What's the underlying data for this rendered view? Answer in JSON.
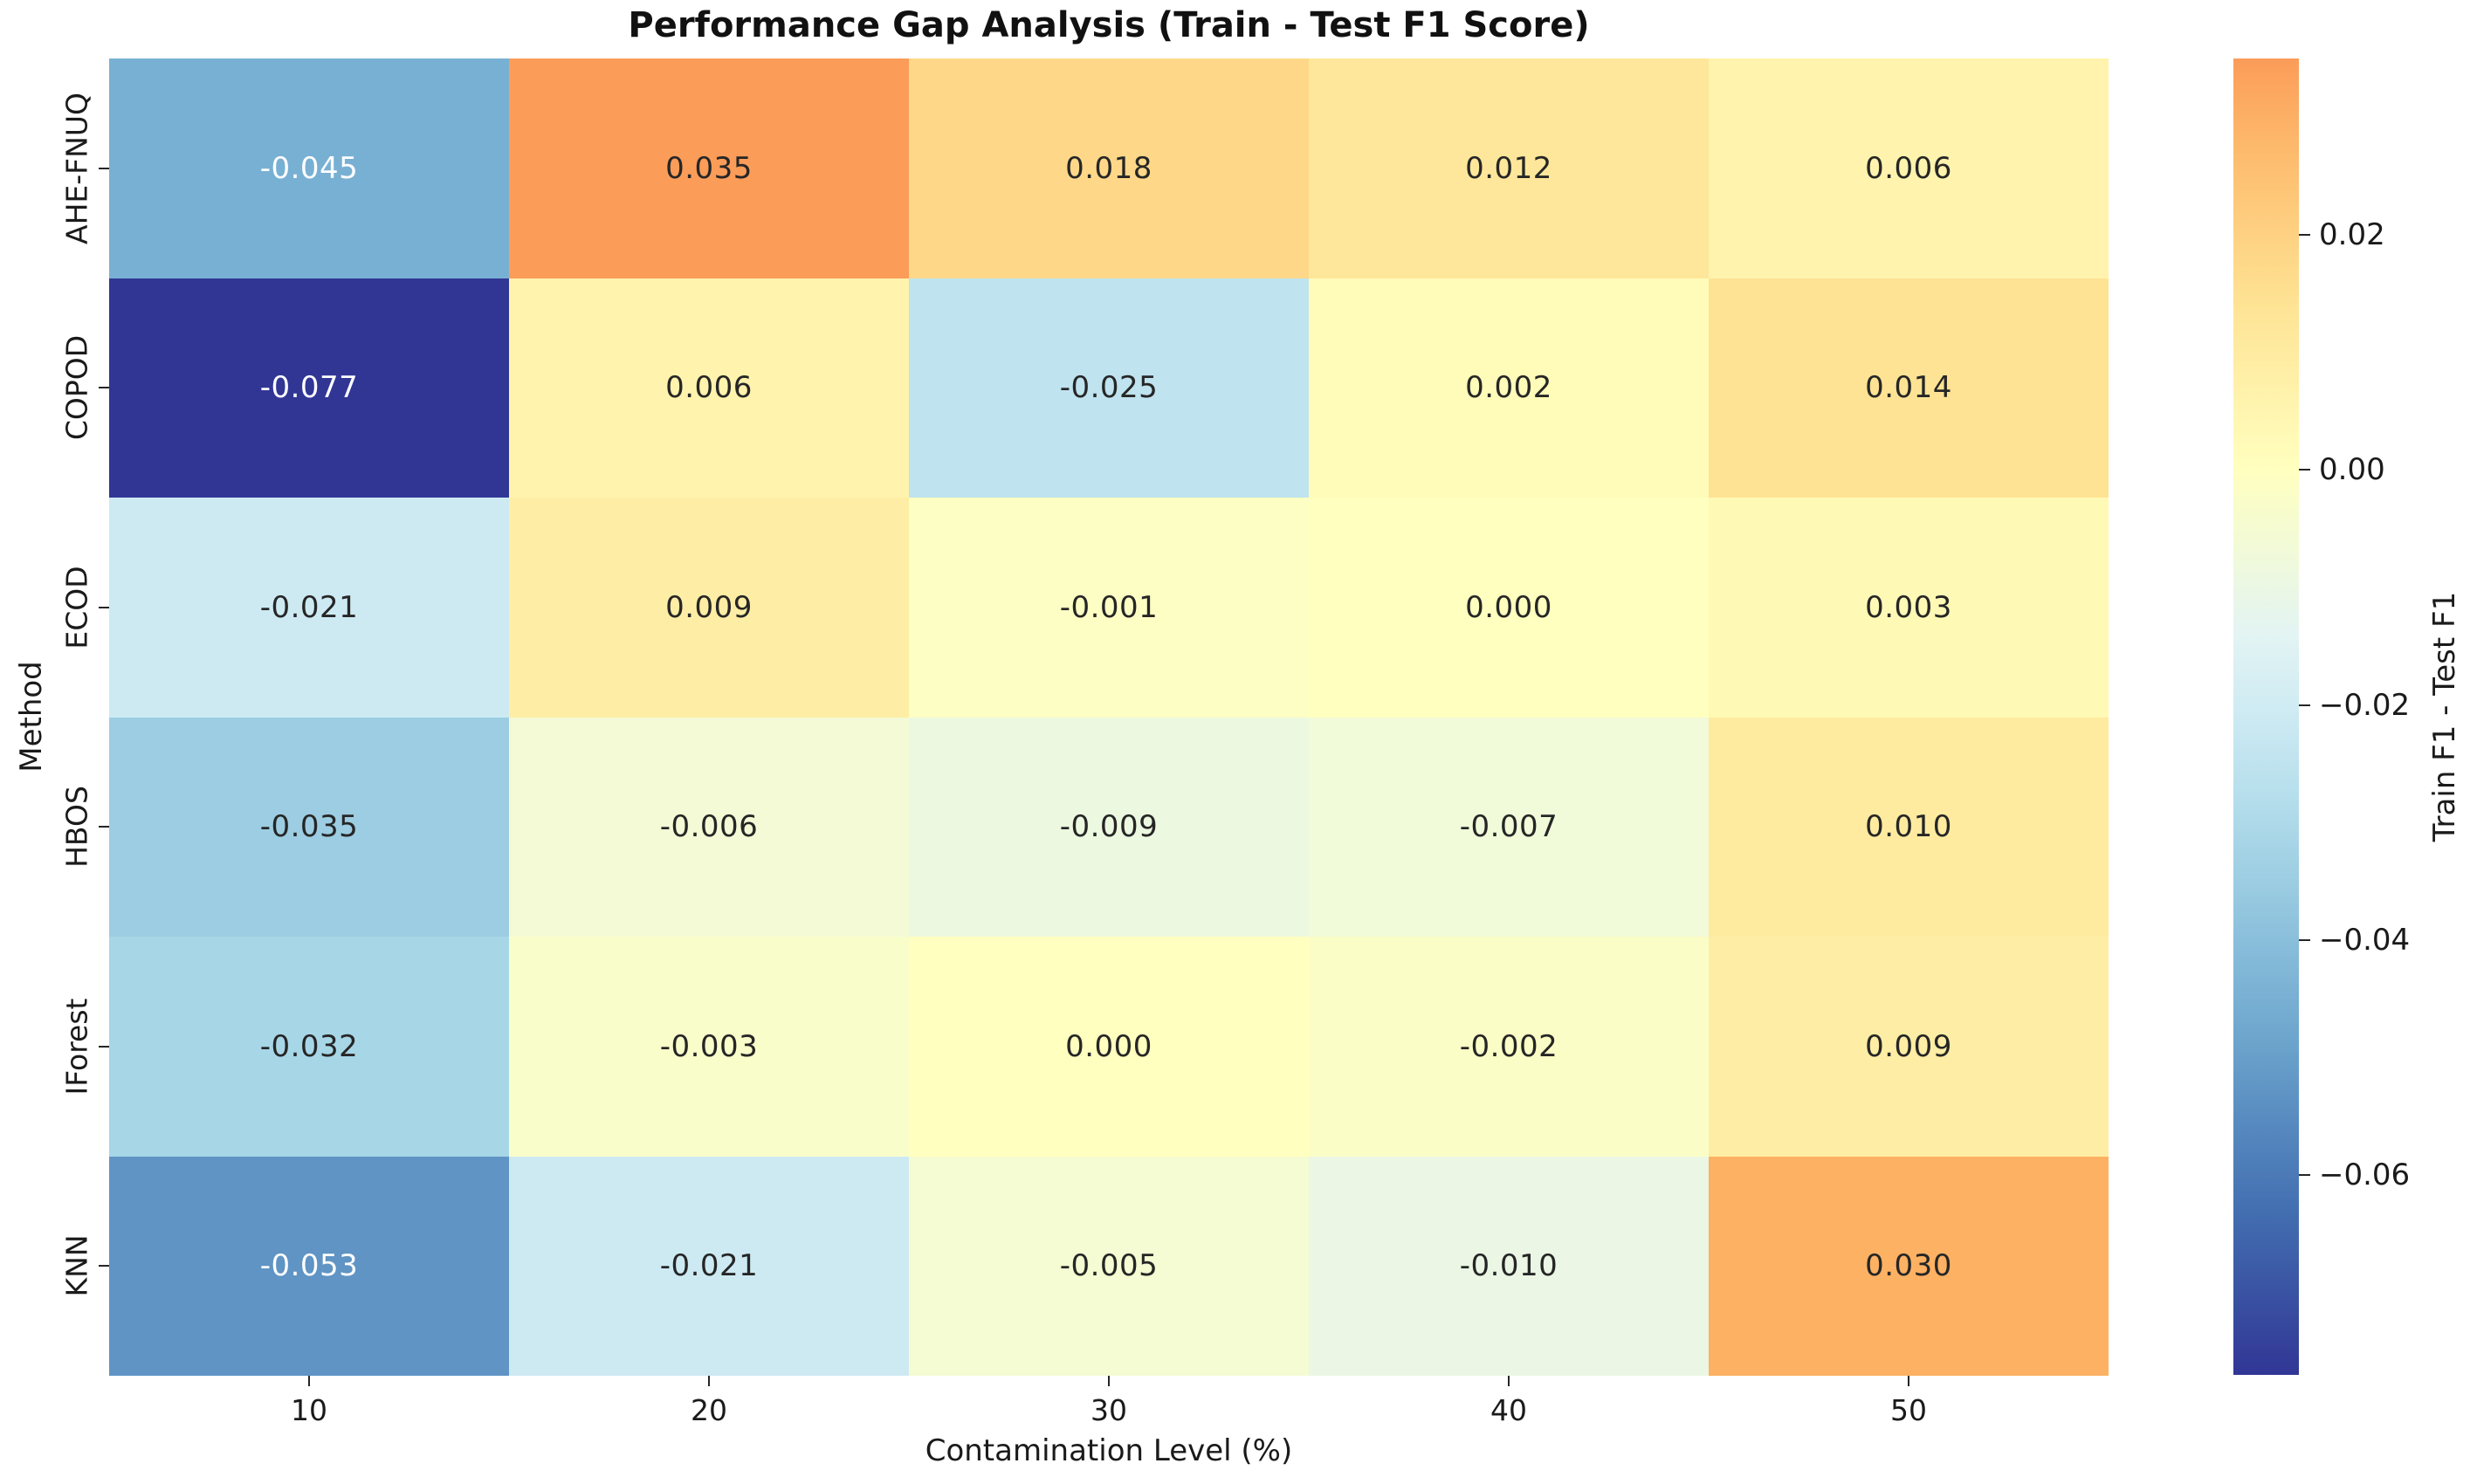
{
  "chart_data": {
    "type": "heatmap",
    "title": "Performance Gap Analysis (Train - Test F1 Score)",
    "xlabel": "Contamination Level (%)",
    "ylabel": "Method",
    "x_categories": [
      "10",
      "20",
      "30",
      "40",
      "50"
    ],
    "y_categories": [
      "AHE-FNUQ",
      "COPOD",
      "ECOD",
      "HBOS",
      "IForest",
      "KNN"
    ],
    "values": [
      [
        -0.045,
        0.035,
        0.018,
        0.012,
        0.006
      ],
      [
        -0.077,
        0.006,
        -0.025,
        0.002,
        0.014
      ],
      [
        -0.021,
        0.009,
        -0.001,
        0.0,
        0.003
      ],
      [
        -0.035,
        -0.006,
        -0.009,
        -0.007,
        0.01
      ],
      [
        -0.032,
        -0.003,
        0.0,
        -0.002,
        0.009
      ],
      [
        -0.053,
        -0.021,
        -0.005,
        -0.01,
        0.03
      ]
    ],
    "annot_decimals": 3,
    "grid": false,
    "colorbar": {
      "label": "Train F1 - Test F1",
      "tick_values": [
        0.02,
        0.0,
        -0.02,
        -0.04,
        -0.06
      ],
      "tick_labels": [
        "0.02",
        "0.00",
        "−0.02",
        "−0.04",
        "−0.06"
      ],
      "vmin": -0.077,
      "vmax": 0.035,
      "center": 0
    },
    "colormap": {
      "name": "RdYlBu_r",
      "anchors": [
        "#313695",
        "#4575b4",
        "#74add1",
        "#abd9e9",
        "#e0f3f8",
        "#ffffbf",
        "#fee090",
        "#fdae61",
        "#f46d43",
        "#d73027",
        "#a50026"
      ],
      "top_visible_color": "#f99c5a",
      "bottom_visible_color": "#313695"
    },
    "text_colors": {
      "dark": "#262626",
      "light": "#ffffff"
    }
  }
}
